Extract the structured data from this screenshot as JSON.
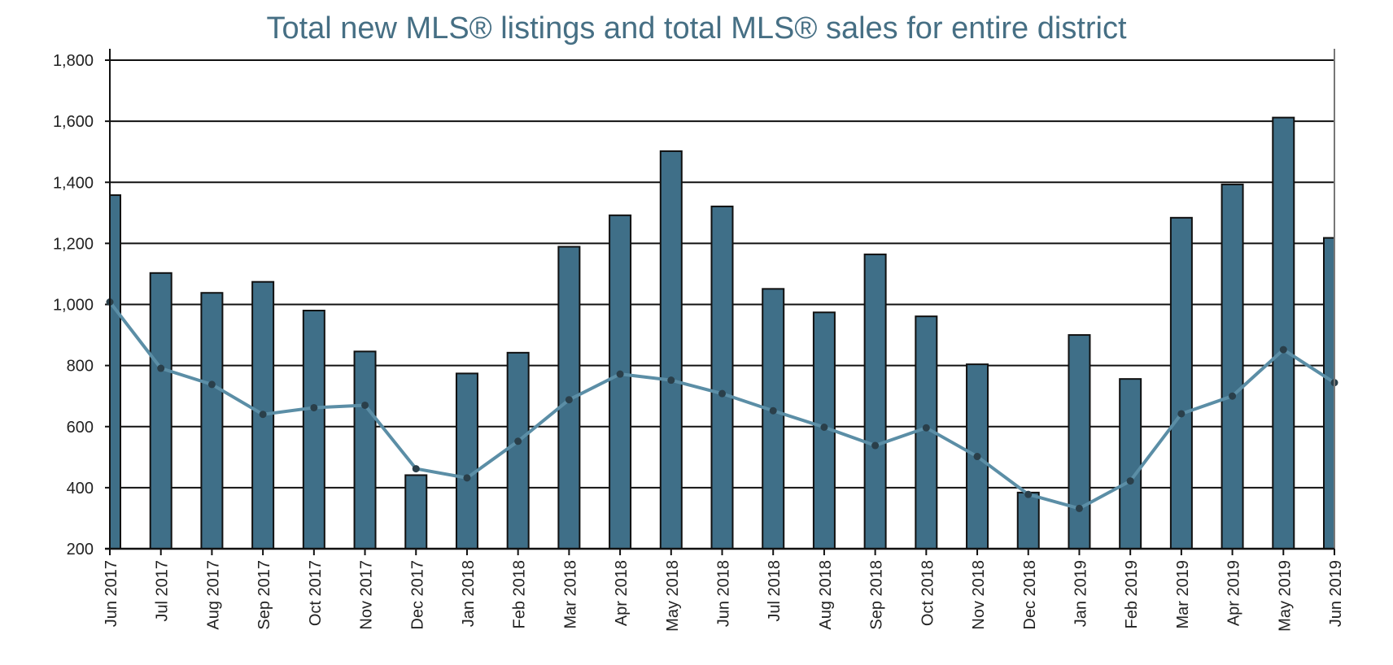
{
  "chart_data": {
    "type": "bar",
    "title": "Total new MLS® listings and total MLS® sales for entire district",
    "categories": [
      "Jun 2017",
      "Jul 2017",
      "Aug 2017",
      "Sep 2017",
      "Oct 2017",
      "Nov 2017",
      "Dec 2017",
      "Jan 2018",
      "Feb 2018",
      "Mar 2018",
      "Apr 2018",
      "May 2018",
      "Jun 2018",
      "Jul 2018",
      "Aug 2018",
      "Sep 2018",
      "Oct 2018",
      "Nov 2018",
      "Dec 2018",
      "Jan 2019",
      "Feb 2019",
      "Mar 2019",
      "Apr 2019",
      "May 2019",
      "Jun 2019"
    ],
    "series": [
      {
        "kind": "bar",
        "color": "#3f6f88",
        "values": [
          1358,
          1103,
          1038,
          1074,
          980,
          846,
          441,
          774,
          842,
          1189,
          1292,
          1502,
          1321,
          1051,
          974,
          1164,
          961,
          804,
          384,
          900,
          756,
          1284,
          1393,
          1612,
          1218
        ]
      },
      {
        "kind": "line",
        "color": "#5b8ea6",
        "values": [
          1008,
          791,
          738,
          640,
          662,
          670,
          462,
          432,
          552,
          688,
          772,
          752,
          708,
          652,
          598,
          538,
          596,
          502,
          378,
          332,
          422,
          642,
          700,
          852,
          744
        ]
      }
    ],
    "ylim": [
      200,
      1800
    ],
    "yticks": [
      "200",
      "400",
      "600",
      "800",
      "1,000",
      "1,200",
      "1,400",
      "1,600",
      "1,800"
    ],
    "ytick_values": [
      200,
      400,
      600,
      800,
      1000,
      1200,
      1400,
      1600,
      1800
    ],
    "grid": true,
    "legend": "none"
  }
}
